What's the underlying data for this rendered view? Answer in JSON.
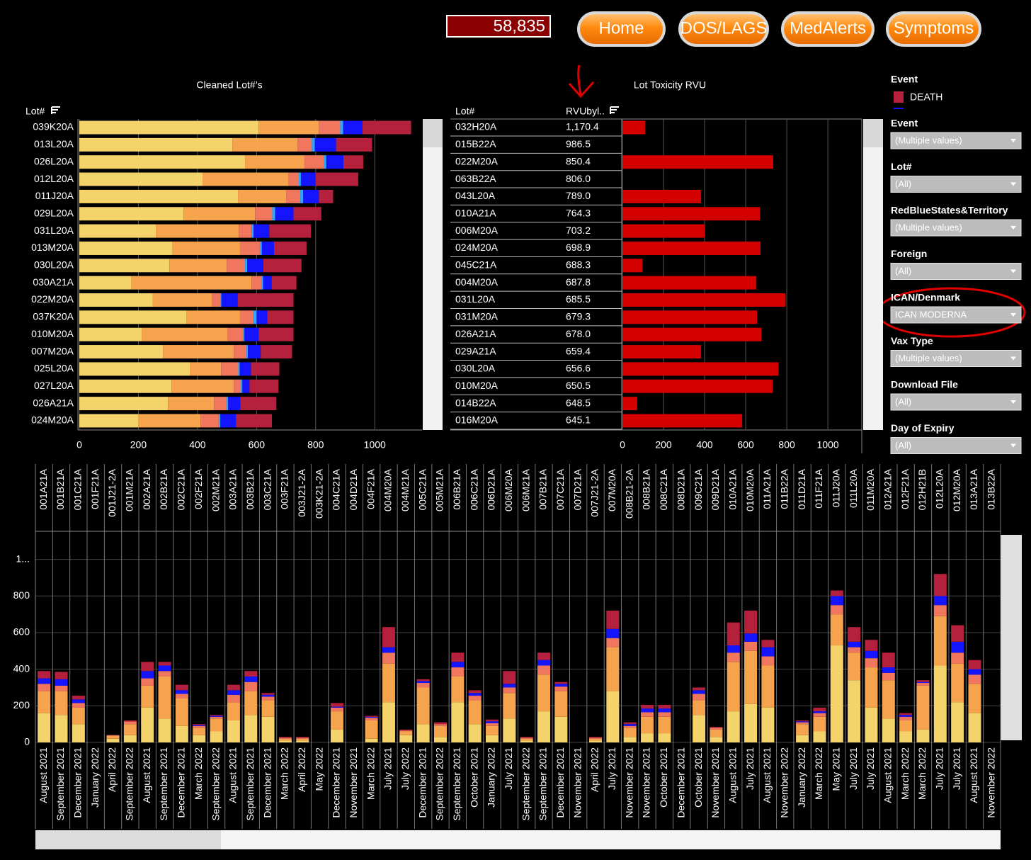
{
  "header": {
    "counter": "58,835",
    "buttons": [
      "Home",
      "DOS/LAGS",
      "MedAlerts",
      "Symptoms"
    ]
  },
  "legend": {
    "title": "Event",
    "items": [
      {
        "name": "DEATH",
        "color": "#b5203c"
      }
    ]
  },
  "filters": [
    {
      "label": "Event",
      "value": "(Multiple values)"
    },
    {
      "label": "Lot#",
      "value": "(All)"
    },
    {
      "label": "RedBlueStates&Territory",
      "value": "(Multiple values)"
    },
    {
      "label": "Foreign",
      "value": "(All)"
    },
    {
      "label": "ICAN/Denmark",
      "value": "ICAN MODERNA"
    },
    {
      "label": "Vax Type",
      "value": "(Multiple values)"
    },
    {
      "label": "Download File",
      "value": "(All)"
    },
    {
      "label": "Day of Expiry",
      "value": "(All)"
    }
  ],
  "chart_data": [
    {
      "type": "bar",
      "orientation": "horizontal",
      "stacked": true,
      "title": "Cleaned Lot#’s",
      "category_header": "Lot#",
      "categories": [
        "039K20A",
        "013L20A",
        "026L20A",
        "012L20A",
        "011J20A",
        "029L20A",
        "031L20A",
        "013M20A",
        "030L20A",
        "030A21A",
        "022M20A",
        "037K20A",
        "010M20A",
        "007M20A",
        "025L20A",
        "027L20A",
        "026A21A",
        "024M20A"
      ],
      "series": [
        {
          "color": "#f5d36b",
          "values": [
            607,
            518,
            561,
            417,
            537,
            353,
            259,
            314,
            305,
            175,
            249,
            362,
            211,
            283,
            374,
            312,
            300,
            199
          ]
        },
        {
          "color": "#f6a34d",
          "values": [
            204,
            221,
            201,
            290,
            163,
            242,
            281,
            230,
            194,
            408,
            201,
            182,
            290,
            240,
            106,
            211,
            156,
            211
          ]
        },
        {
          "color": "#f0775e",
          "values": [
            72,
            48,
            67,
            36,
            48,
            58,
            43,
            67,
            62,
            34,
            29,
            46,
            53,
            43,
            58,
            24,
            43,
            62
          ]
        },
        {
          "color": "#2fa6ff",
          "values": [
            10,
            10,
            7,
            7,
            10,
            10,
            7,
            7,
            7,
            5,
            2,
            10,
            5,
            5,
            5,
            5,
            5,
            5
          ]
        },
        {
          "color": "#1414ff",
          "values": [
            65,
            72,
            58,
            50,
            53,
            62,
            53,
            41,
            55,
            29,
            55,
            36,
            48,
            43,
            38,
            24,
            41,
            53
          ]
        },
        {
          "color": "#b5203c",
          "values": [
            165,
            122,
            67,
            144,
            48,
            94,
            141,
            110,
            129,
            84,
            189,
            89,
            118,
            106,
            96,
            98,
            122,
            122
          ]
        }
      ],
      "xlim": [
        0,
        1160
      ],
      "xticks": [
        0,
        200,
        400,
        600,
        800,
        1000
      ],
      "grid": true
    },
    {
      "type": "bar",
      "orientation": "horizontal",
      "stacked": false,
      "title": "Lot Toxicity RVU",
      "column_headers": [
        "Lot#",
        "RVUbyl.."
      ],
      "categories": [
        "032H20A",
        "015B22A",
        "022M20A",
        "063B22A",
        "043L20A",
        "010A21A",
        "006M20A",
        "024M20A",
        "045C21A",
        "004M20A",
        "031L20A",
        "031M20A",
        "026A21A",
        "029A21A",
        "030L20A",
        "010M20A",
        "014B22A",
        "016M20A"
      ],
      "rvu": [
        "1,170.4",
        "986.5",
        "850.4",
        "806.0",
        "789.0",
        "764.3",
        "703.2",
        "698.9",
        "688.3",
        "687.8",
        "685.5",
        "679.3",
        "678.0",
        "659.4",
        "656.6",
        "650.5",
        "648.5",
        "645.1"
      ],
      "values": [
        110,
        null,
        734,
        null,
        383,
        669,
        400,
        672,
        97,
        652,
        793,
        655,
        676,
        383,
        759,
        731,
        72,
        583
      ],
      "color": "#d40000",
      "xlim": [
        0,
        1165
      ],
      "xticks": [
        0,
        200,
        400,
        600,
        800,
        1000
      ],
      "grid": true
    },
    {
      "type": "bar",
      "orientation": "vertical",
      "stacked": true,
      "categories": [
        "001A21A",
        "001B21A",
        "001C21A",
        "001F21A",
        "001J21-2A",
        "001M21A",
        "002A21A",
        "002B21A",
        "002C21A",
        "002F21A",
        "002M21A",
        "003A21A",
        "003B21A",
        "003C21A",
        "003F21A",
        "003J21-2A",
        "003K21-2A",
        "004C21A",
        "004D21A",
        "004F21A",
        "004M20A",
        "004M21A",
        "005C21A",
        "005M21A",
        "006B21A",
        "006C21A",
        "006D21A",
        "006M20A",
        "006M21A",
        "007B21A",
        "007C21A",
        "007D21A",
        "007J21-2A",
        "007M20A",
        "008B21-2A",
        "008B21A",
        "008C21A",
        "008D21A",
        "009C21A",
        "009D21A",
        "010A21A",
        "010M20A",
        "011A21A",
        "011B22A",
        "011D21A",
        "011F21A",
        "011J20A",
        "011L20A",
        "011M20A",
        "012A21A",
        "012F21A",
        "012H21B",
        "012L20A",
        "012M20A",
        "013A21A",
        "013B22A"
      ],
      "expiry": [
        "August 2021",
        "September 2021",
        "December 2021",
        "January 2022",
        "April 2022",
        "September 2022",
        "August 2021",
        "September 2021",
        "December 2021",
        "March 2022",
        "September 2022",
        "August 2021",
        "September 2021",
        "December 2021",
        "March 2022",
        "April 2022",
        "May 2022",
        "December 2021",
        "November 2021",
        "March 2022",
        "July 2021",
        "July 2022",
        "December 2021",
        "September 2022",
        "September 2021",
        "October 2021",
        "January 2022",
        "July 2021",
        "September 2022",
        "September 2021",
        "December 2021",
        "November 2021",
        "April 2022",
        "July 2021",
        "November 2021",
        "November 2021",
        "October 2021",
        "December 2021",
        "October 2021",
        "November 2021",
        "August 2021",
        "July 2021",
        "August 2021",
        "November 2022",
        "January 2022",
        "March 2022",
        "May 2021",
        "July 2021",
        "July 2021",
        "August 2021",
        "March 2022",
        "March 2022",
        "July 2021",
        "July 2021",
        "August 2021",
        "November 2022"
      ],
      "series": [
        {
          "color": "#f5d36b",
          "values": [
            160,
            150,
            100,
            null,
            20,
            40,
            190,
            130,
            90,
            40,
            60,
            120,
            150,
            140,
            10,
            10,
            null,
            70,
            null,
            20,
            220,
            40,
            100,
            30,
            220,
            100,
            40,
            130,
            10,
            170,
            140,
            null,
            10,
            280,
            30,
            50,
            50,
            null,
            150,
            30,
            170,
            210,
            190,
            null,
            40,
            60,
            530,
            340,
            190,
            130,
            60,
            70,
            420,
            220,
            160,
            null
          ]
        },
        {
          "color": "#f6a34d",
          "values": [
            120,
            130,
            90,
            null,
            15,
            60,
            120,
            230,
            150,
            40,
            70,
            100,
            130,
            90,
            10,
            10,
            null,
            100,
            null,
            100,
            210,
            20,
            200,
            60,
            140,
            130,
            50,
            140,
            10,
            200,
            140,
            null,
            10,
            240,
            50,
            90,
            90,
            null,
            80,
            40,
            270,
            290,
            230,
            null,
            60,
            80,
            170,
            150,
            220,
            210,
            60,
            240,
            270,
            210,
            160,
            null
          ]
        },
        {
          "color": "#f0775e",
          "values": [
            40,
            30,
            25,
            null,
            5,
            15,
            40,
            30,
            25,
            10,
            10,
            40,
            50,
            20,
            5,
            5,
            null,
            20,
            null,
            15,
            60,
            5,
            25,
            10,
            50,
            25,
            15,
            30,
            5,
            50,
            25,
            null,
            5,
            50,
            10,
            25,
            25,
            null,
            35,
            10,
            50,
            50,
            50,
            null,
            10,
            20,
            50,
            30,
            50,
            40,
            20,
            15,
            60,
            60,
            50,
            null
          ]
        },
        {
          "color": "#1414ff",
          "values": [
            30,
            35,
            20,
            null,
            0,
            0,
            40,
            30,
            20,
            5,
            5,
            25,
            30,
            10,
            0,
            0,
            null,
            5,
            null,
            5,
            30,
            0,
            10,
            0,
            30,
            15,
            10,
            20,
            0,
            30,
            15,
            null,
            0,
            50,
            10,
            20,
            20,
            null,
            20,
            0,
            40,
            45,
            50,
            null,
            5,
            10,
            50,
            30,
            40,
            30,
            10,
            5,
            50,
            60,
            30,
            null
          ]
        },
        {
          "color": "#b5203c",
          "values": [
            40,
            40,
            20,
            null,
            0,
            5,
            50,
            20,
            30,
            5,
            5,
            30,
            30,
            10,
            5,
            5,
            null,
            20,
            null,
            5,
            110,
            5,
            10,
            10,
            50,
            15,
            10,
            70,
            5,
            40,
            10,
            null,
            5,
            100,
            10,
            20,
            20,
            null,
            15,
            5,
            125,
            125,
            40,
            null,
            5,
            20,
            30,
            80,
            60,
            80,
            10,
            10,
            120,
            90,
            50,
            null
          ]
        }
      ],
      "ylim": [
        0,
        1130
      ],
      "yticks": [
        0,
        200,
        400,
        600,
        800,
        {
          "value": 1000,
          "label": "1..."
        }
      ],
      "grid": true
    }
  ]
}
